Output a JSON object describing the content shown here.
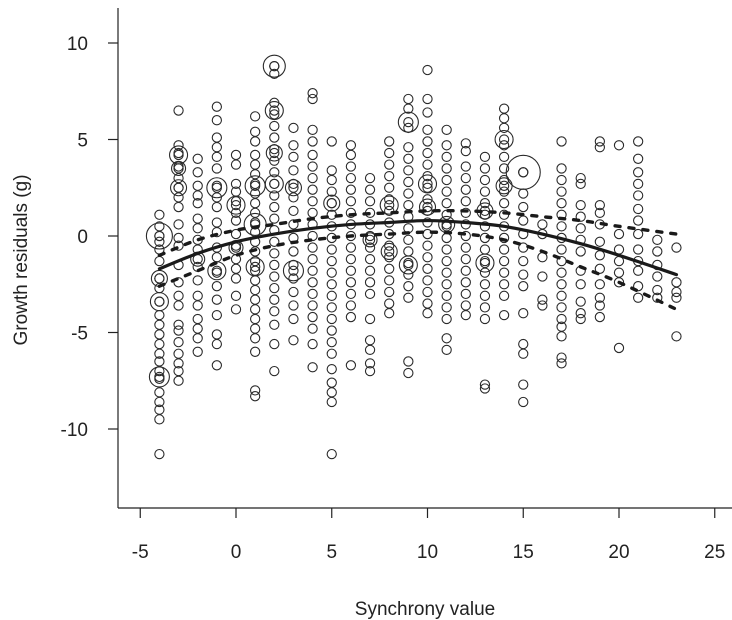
{
  "chart_data": {
    "type": "scatter",
    "title": "",
    "xlabel": "Synchrony value",
    "ylabel": "Growth residuals (g)",
    "xlim": [
      -6,
      25.5
    ],
    "ylim": [
      -14.5,
      12
    ],
    "xticks": [
      -5,
      0,
      5,
      10,
      15,
      20,
      25
    ],
    "xtick_labels": [
      "-5",
      "0",
      "5",
      "10",
      "15",
      "20",
      "25"
    ],
    "yticks": [
      10,
      5,
      0,
      -5,
      -10
    ],
    "ytick_labels": [
      "10",
      "5",
      "0",
      "-5",
      "-10"
    ],
    "grid": false,
    "legend": "none",
    "fit_curve": {
      "style": "solid",
      "x": [
        -4,
        -2,
        0,
        2,
        4,
        6,
        8,
        10,
        12,
        14,
        16,
        18,
        20,
        23
      ],
      "y": [
        -1.7,
        -0.9,
        -0.3,
        0.1,
        0.4,
        0.6,
        0.7,
        0.8,
        0.7,
        0.5,
        0.1,
        -0.4,
        -1.0,
        -2.0
      ]
    },
    "ci_upper": {
      "style": "dashed",
      "x": [
        -4,
        -2,
        0,
        2,
        4,
        6,
        8,
        10,
        12,
        14,
        16,
        18,
        20,
        23
      ],
      "y": [
        -1.0,
        -0.2,
        0.3,
        0.6,
        0.9,
        1.1,
        1.2,
        1.3,
        1.3,
        1.2,
        1.0,
        0.8,
        0.5,
        0.1
      ]
    },
    "ci_lower": {
      "style": "dashed",
      "x": [
        -4,
        -2,
        0,
        2,
        4,
        6,
        8,
        10,
        12,
        14,
        16,
        18,
        20,
        23
      ],
      "y": [
        -2.6,
        -1.8,
        -1.0,
        -0.5,
        -0.2,
        0.0,
        0.1,
        0.2,
        0.1,
        -0.2,
        -0.8,
        -1.6,
        -2.4,
        -3.8
      ]
    },
    "point_groups": [
      {
        "x": -4,
        "y": [
          1.1,
          0.5,
          0,
          -0.3,
          -0.7,
          -1.3,
          -2.2,
          -2.7,
          -3.4,
          -4.1,
          -4.6,
          -5.1,
          -5.6,
          -6.1,
          -6.5,
          -7.0,
          -7.4,
          -8.1,
          -8.6,
          -9.0,
          -9.5,
          -11.3
        ],
        "big": [
          [
            0,
            13
          ],
          [
            -3.4,
            9
          ],
          [
            -7.3,
            10
          ],
          [
            -2.2,
            8
          ]
        ]
      },
      {
        "x": -3,
        "y": [
          6.5,
          4.7,
          4.3,
          3.6,
          3.0,
          2.5,
          2.0,
          1.5,
          0.6,
          -0.1,
          -0.5,
          -1.5,
          -2.4,
          -3.1,
          -3.6,
          -4.6,
          -4.9,
          -5.5,
          -6.1,
          -6.6,
          -7.0,
          -7.5
        ],
        "big": [
          [
            4.2,
            9
          ],
          [
            2.5,
            8
          ],
          [
            3.5,
            7
          ]
        ]
      },
      {
        "x": -2,
        "y": [
          4.0,
          3.3,
          2.6,
          2.1,
          1.7,
          0.9,
          0.4,
          -0.2,
          -0.7,
          -1.6,
          -2.3,
          -3.1,
          -3.6,
          -4.3,
          -4.8,
          -5.3,
          -6.0
        ],
        "big": [
          [
            -1.2,
            7
          ]
        ]
      },
      {
        "x": -1,
        "y": [
          6.7,
          6.0,
          5.1,
          4.6,
          4.1,
          3.5,
          2.6,
          2.0,
          1.5,
          0.7,
          0.2,
          -0.6,
          -1.1,
          -1.9,
          -2.6,
          -3.3,
          -4.1,
          -5.1,
          -5.6,
          -6.7
        ],
        "big": [
          [
            2.5,
            10
          ],
          [
            -1.8,
            9
          ]
        ]
      },
      {
        "x": 0,
        "y": [
          4.2,
          3.7,
          2.7,
          2.3,
          1.8,
          1.2,
          0.8,
          0.1,
          -0.5,
          -1.2,
          -1.7,
          -2.2,
          -3.1,
          -3.8
        ],
        "big": [
          [
            1.6,
            9
          ],
          [
            -0.6,
            7
          ]
        ]
      },
      {
        "x": 1,
        "y": [
          6.2,
          5.4,
          4.9,
          4.2,
          3.7,
          3.2,
          2.7,
          2.2,
          1.7,
          1.2,
          0.7,
          0.2,
          -0.3,
          -0.8,
          -1.3,
          -1.8,
          -2.3,
          -2.8,
          -3.3,
          -3.8,
          -4.3,
          -4.8,
          -5.3,
          -6.0,
          -8.0,
          -8.3
        ],
        "big": [
          [
            2.6,
            10
          ],
          [
            0.6,
            11
          ],
          [
            -1.6,
            9
          ]
        ]
      },
      {
        "x": 2,
        "y": [
          8.8,
          8.4,
          6.9,
          6.3,
          5.7,
          5.1,
          4.5,
          3.9,
          3.3,
          2.7,
          2.1,
          1.5,
          0.9,
          0.3,
          -0.3,
          -0.9,
          -1.5,
          -2.1,
          -2.7,
          -3.3,
          -3.9,
          -4.6,
          -5.6,
          -7.0
        ],
        "big": [
          [
            8.8,
            11
          ],
          [
            6.5,
            9
          ],
          [
            2.7,
            9
          ],
          [
            4.3,
            8
          ]
        ]
      },
      {
        "x": 3,
        "y": [
          5.6,
          4.7,
          4.1,
          3.4,
          2.7,
          2.0,
          1.3,
          0.6,
          -0.1,
          -0.8,
          -1.5,
          -2.2,
          -2.9,
          -3.6,
          -4.3,
          -5.4
        ],
        "big": [
          [
            -1.8,
            10
          ],
          [
            2.5,
            8
          ]
        ]
      },
      {
        "x": 4,
        "y": [
          7.4,
          7.1,
          5.5,
          4.9,
          4.2,
          3.6,
          3.0,
          2.4,
          1.8,
          1.2,
          0.6,
          0.0,
          -0.6,
          -1.2,
          -1.8,
          -2.4,
          -3.0,
          -3.6,
          -4.2,
          -4.8,
          -5.6,
          -6.8
        ],
        "big": []
      },
      {
        "x": 5,
        "y": [
          4.9,
          3.4,
          2.9,
          2.3,
          1.7,
          1.1,
          0.5,
          -0.1,
          -0.7,
          -1.3,
          -1.9,
          -2.5,
          -3.1,
          -3.7,
          -4.3,
          -4.9,
          -5.5,
          -6.1,
          -6.9,
          -7.6,
          -8.1,
          -8.6,
          -11.3
        ],
        "big": [
          [
            1.7,
            8
          ]
        ]
      },
      {
        "x": 6,
        "y": [
          4.7,
          4.2,
          3.6,
          3.0,
          2.4,
          1.8,
          1.2,
          0.6,
          0.0,
          -0.6,
          -1.2,
          -1.8,
          -2.4,
          -3.0,
          -3.6,
          -4.2,
          -6.7
        ],
        "big": []
      },
      {
        "x": 7,
        "y": [
          3.0,
          2.4,
          1.8,
          1.2,
          0.6,
          0.0,
          -0.6,
          -1.2,
          -1.8,
          -2.4,
          -3.0,
          -4.3,
          -5.4,
          -5.9,
          -6.6,
          -7.0
        ],
        "big": [
          [
            -0.2,
            7
          ]
        ]
      },
      {
        "x": 8,
        "y": [
          4.9,
          4.3,
          3.7,
          3.1,
          2.5,
          1.9,
          1.3,
          0.7,
          0.1,
          -0.5,
          -1.1,
          -1.7,
          -2.3,
          -2.9,
          -3.5,
          -4.0
        ],
        "big": [
          [
            1.6,
            9
          ],
          [
            -0.8,
            8
          ]
        ]
      },
      {
        "x": 9,
        "y": [
          7.1,
          6.6,
          5.6,
          4.6,
          4.0,
          3.4,
          2.8,
          2.2,
          1.6,
          1.0,
          0.4,
          -0.2,
          -0.8,
          -1.4,
          -2.0,
          -2.6,
          -3.2,
          -6.5,
          -7.1
        ],
        "big": [
          [
            5.9,
            10
          ],
          [
            -1.5,
            9
          ]
        ]
      },
      {
        "x": 10,
        "y": [
          8.6,
          7.1,
          6.4,
          5.5,
          4.9,
          4.3,
          3.7,
          3.1,
          2.5,
          1.9,
          1.3,
          0.7,
          0.1,
          -0.5,
          -1.1,
          -1.7,
          -2.3,
          -2.9,
          -3.5,
          -4.0
        ],
        "big": [
          [
            2.7,
            9
          ],
          [
            1.5,
            8
          ]
        ]
      },
      {
        "x": 11,
        "y": [
          5.5,
          4.7,
          4.1,
          3.5,
          2.9,
          2.3,
          1.7,
          1.1,
          0.5,
          -0.1,
          -0.7,
          -1.3,
          -1.9,
          -2.5,
          -3.1,
          -3.7,
          -4.3,
          -5.3,
          -5.9
        ],
        "big": [
          [
            0.6,
            8
          ]
        ]
      },
      {
        "x": 12,
        "y": [
          4.8,
          4.4,
          3.6,
          3.0,
          2.4,
          1.8,
          1.2,
          0.6,
          0.0,
          -0.6,
          -1.2,
          -1.8,
          -2.4,
          -3.0,
          -3.6,
          -4.1
        ],
        "big": []
      },
      {
        "x": 13,
        "y": [
          4.1,
          3.5,
          2.9,
          2.3,
          1.7,
          1.1,
          0.5,
          -0.1,
          -0.7,
          -1.3,
          -1.9,
          -2.5,
          -3.1,
          -3.7,
          -4.3,
          -7.7,
          -7.9
        ],
        "big": [
          [
            1.3,
            8
          ],
          [
            -1.4,
            9
          ]
        ]
      },
      {
        "x": 14,
        "y": [
          6.6,
          6.1,
          5.6,
          4.7,
          4.1,
          3.5,
          2.9,
          2.3,
          1.7,
          1.1,
          0.5,
          -0.1,
          -0.7,
          -1.3,
          -1.9,
          -2.5,
          -3.1,
          -4.1
        ],
        "big": [
          [
            5.0,
            9
          ],
          [
            2.6,
            8
          ]
        ]
      },
      {
        "x": 15,
        "y": [
          3.3,
          2.2,
          1.5,
          0.8,
          0.1,
          -0.6,
          -1.3,
          -2.0,
          -2.6,
          -4.0,
          -5.6,
          -6.1,
          -7.7,
          -8.6
        ],
        "big": [
          [
            3.3,
            17
          ]
        ]
      },
      {
        "x": 16,
        "y": [
          0.6,
          0.1,
          -1.1,
          -2.1,
          -3.3,
          -3.6
        ],
        "big": []
      },
      {
        "x": 17,
        "y": [
          4.9,
          3.5,
          2.9,
          2.3,
          1.7,
          1.1,
          0.5,
          -0.1,
          -0.7,
          -1.3,
          -1.9,
          -2.5,
          -3.1,
          -3.7,
          -4.3,
          -4.7,
          -5.2,
          -6.3,
          -6.6
        ],
        "big": []
      },
      {
        "x": 18,
        "y": [
          3.0,
          2.7,
          1.6,
          1.0,
          0.4,
          -0.2,
          -0.8,
          -1.8,
          -2.5,
          -3.4,
          -4.0,
          -4.3
        ],
        "big": []
      },
      {
        "x": 19,
        "y": [
          4.9,
          4.6,
          1.6,
          1.2,
          0.6,
          -0.3,
          -1.0,
          -1.7,
          -2.5,
          -3.2,
          -3.6,
          -4.2
        ],
        "big": []
      },
      {
        "x": 20,
        "y": [
          4.7,
          0.1,
          -0.7,
          -1.3,
          -1.9,
          -2.4,
          -5.8
        ],
        "big": []
      },
      {
        "x": 21,
        "y": [
          4.9,
          4.0,
          3.3,
          2.7,
          2.1,
          1.4,
          0.8,
          0.1,
          -0.7,
          -1.3,
          -1.8,
          -2.6,
          -3.2
        ],
        "big": []
      },
      {
        "x": 22,
        "y": [
          -0.2,
          -0.8,
          -1.5,
          -2.1,
          -2.8,
          -3.2
        ],
        "big": []
      },
      {
        "x": 23,
        "y": [
          -0.6,
          -2.4,
          -2.9,
          -3.2,
          -5.2
        ],
        "big": []
      }
    ]
  }
}
